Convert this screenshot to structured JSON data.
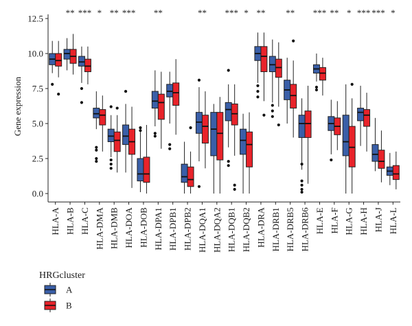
{
  "chart_data": {
    "type": "boxplot",
    "title": "",
    "xlabel": "",
    "ylabel": "Gene expression",
    "ylim": [
      -0.6,
      12.8
    ],
    "yticks": [
      "0.0",
      "2.5",
      "5.0",
      "7.5",
      "10.0",
      "12.5"
    ],
    "ytick_values": [
      0,
      2.5,
      5,
      7.5,
      10,
      12.5
    ],
    "grid": false,
    "legend": {
      "title": "HRGcluster",
      "placement": "bottom-left",
      "entries": [
        {
          "label": "A",
          "color": "#3a5fa8"
        },
        {
          "label": "B",
          "color": "#e8232a"
        }
      ]
    },
    "categories": [
      "HLA-A",
      "HLA-B",
      "HLA-C",
      "HLA-DMA",
      "HLA-DMB",
      "HLA-DOA",
      "HLA-DOB",
      "HLA-DPA1",
      "HLA-DPB1",
      "HLA-DPB2",
      "HLA-DQA1",
      "HLA-DQA2",
      "HLA-DQB1",
      "HLA-DQB2",
      "HLA-DRA",
      "HLA-DRB1",
      "HLA-DRB5",
      "HLA-DRB6",
      "HLA-E",
      "HLA-F",
      "HLA-G",
      "HLA-H",
      "HLA-J",
      "HLA-L"
    ],
    "significance": [
      "",
      "**",
      "***",
      "*",
      "**",
      "***",
      "",
      "**",
      "",
      "",
      "**",
      "",
      "***",
      "*",
      "**",
      "",
      "**",
      "",
      "***",
      "**",
      "*",
      "***",
      "***",
      "*"
    ],
    "series": [
      {
        "name": "A",
        "color": "#3a5fa8",
        "boxes": [
          {
            "whislo": 8.6,
            "q1": 9.2,
            "med": 9.6,
            "q3": 10.0,
            "whishi": 10.9,
            "fliers": [
              7.8
            ]
          },
          {
            "whislo": 8.8,
            "q1": 9.6,
            "med": 10.0,
            "q3": 10.3,
            "whishi": 11.1,
            "fliers": []
          },
          {
            "whislo": 7.9,
            "q1": 9.1,
            "med": 9.4,
            "q3": 9.8,
            "whishi": 10.5,
            "fliers": [
              7.5,
              6.5
            ]
          },
          {
            "whislo": 4.6,
            "q1": 5.4,
            "med": 5.7,
            "q3": 6.1,
            "whishi": 7.3,
            "fliers": [
              3.3,
              3.1,
              2.5,
              2.3
            ]
          },
          {
            "whislo": 2.6,
            "q1": 3.7,
            "med": 4.1,
            "q3": 4.6,
            "whishi": 5.6,
            "fliers": [
              2.4,
              2.1,
              1.8,
              6.2
            ]
          },
          {
            "whislo": 1.5,
            "q1": 3.5,
            "med": 4.1,
            "q3": 4.9,
            "whishi": 6.4,
            "fliers": [
              7.3
            ]
          },
          {
            "whislo": 0.1,
            "q1": 0.9,
            "med": 1.4,
            "q3": 2.5,
            "whishi": 4.4,
            "fliers": [
              4.5,
              4.7
            ]
          },
          {
            "whislo": 4.8,
            "q1": 6.1,
            "med": 6.6,
            "q3": 7.3,
            "whishi": 8.8,
            "fliers": [
              4.3,
              4.1
            ]
          },
          {
            "whislo": 5.0,
            "q1": 6.9,
            "med": 7.3,
            "q3": 7.8,
            "whishi": 8.7,
            "fliers": [
              3.5,
              3.2
            ]
          },
          {
            "whislo": 0.0,
            "q1": 0.8,
            "med": 1.2,
            "q3": 2.1,
            "whishi": 3.7,
            "fliers": []
          },
          {
            "whislo": 2.3,
            "q1": 4.3,
            "med": 5.1,
            "q3": 5.8,
            "whishi": 7.6,
            "fliers": [
              8.1,
              0.5
            ]
          },
          {
            "whislo": 0.0,
            "q1": 2.7,
            "med": 4.6,
            "q3": 5.8,
            "whishi": 6.4,
            "fliers": []
          },
          {
            "whislo": 3.3,
            "q1": 5.2,
            "med": 6.0,
            "q3": 6.5,
            "whishi": 7.8,
            "fliers": [
              8.8,
              2.3,
              2.0
            ]
          },
          {
            "whislo": 0.0,
            "q1": 2.8,
            "med": 3.8,
            "q3": 4.6,
            "whishi": 5.7,
            "fliers": []
          },
          {
            "whislo": 7.9,
            "q1": 9.5,
            "med": 10.0,
            "q3": 10.5,
            "whishi": 11.5,
            "fliers": [
              7.7,
              7.3,
              6.9
            ]
          },
          {
            "whislo": 6.5,
            "q1": 8.7,
            "med": 9.2,
            "q3": 9.8,
            "whishi": 11.0,
            "fliers": [
              6.3,
              5.9,
              5.5
            ]
          },
          {
            "whislo": 5.0,
            "q1": 6.7,
            "med": 7.4,
            "q3": 8.1,
            "whishi": 9.7,
            "fliers": []
          },
          {
            "whislo": 1.7,
            "q1": 4.0,
            "med": 5.0,
            "q3": 5.6,
            "whishi": 6.8,
            "fliers": [
              2.1,
              0.9,
              0.6,
              0.3,
              0.1
            ]
          },
          {
            "whislo": 8.0,
            "q1": 8.6,
            "med": 8.9,
            "q3": 9.2,
            "whishi": 10.0,
            "fliers": [
              7.6,
              7.4
            ]
          },
          {
            "whislo": 2.8,
            "q1": 4.5,
            "med": 5.0,
            "q3": 5.5,
            "whishi": 6.7,
            "fliers": [
              2.4
            ]
          },
          {
            "whislo": 0.0,
            "q1": 2.7,
            "med": 3.7,
            "q3": 5.6,
            "whishi": 7.8,
            "fliers": []
          },
          {
            "whislo": 3.4,
            "q1": 5.2,
            "med": 5.8,
            "q3": 6.1,
            "whishi": 7.7,
            "fliers": []
          },
          {
            "whislo": 1.6,
            "q1": 2.3,
            "med": 2.8,
            "q3": 3.5,
            "whishi": 5.4,
            "fliers": []
          },
          {
            "whislo": 0.6,
            "q1": 1.3,
            "med": 1.6,
            "q3": 1.9,
            "whishi": 2.9,
            "fliers": []
          }
        ]
      },
      {
        "name": "B",
        "color": "#e8232a",
        "boxes": [
          {
            "whislo": 8.3,
            "q1": 9.1,
            "med": 9.5,
            "q3": 10.0,
            "whishi": 10.9,
            "fliers": [
              7.1
            ]
          },
          {
            "whislo": 8.5,
            "q1": 9.3,
            "med": 9.8,
            "q3": 10.3,
            "whishi": 11.4,
            "fliers": []
          },
          {
            "whislo": 7.8,
            "q1": 8.7,
            "med": 9.1,
            "q3": 9.6,
            "whishi": 10.5,
            "fliers": []
          },
          {
            "whislo": 3.0,
            "q1": 4.9,
            "med": 5.6,
            "q3": 6.0,
            "whishi": 7.0,
            "fliers": []
          },
          {
            "whislo": 1.5,
            "q1": 3.0,
            "med": 3.8,
            "q3": 4.4,
            "whishi": 5.6,
            "fliers": [
              6.1
            ]
          },
          {
            "whislo": 0.4,
            "q1": 2.8,
            "med": 3.7,
            "q3": 4.6,
            "whishi": 6.2,
            "fliers": []
          },
          {
            "whislo": 0.0,
            "q1": 0.8,
            "med": 1.4,
            "q3": 2.6,
            "whishi": 4.9,
            "fliers": []
          },
          {
            "whislo": 3.2,
            "q1": 5.3,
            "med": 6.5,
            "q3": 7.1,
            "whishi": 8.7,
            "fliers": []
          },
          {
            "whislo": 4.2,
            "q1": 6.3,
            "med": 7.2,
            "q3": 7.9,
            "whishi": 9.6,
            "fliers": []
          },
          {
            "whislo": 0.0,
            "q1": 0.5,
            "med": 1.0,
            "q3": 1.9,
            "whishi": 3.0,
            "fliers": [
              4.7
            ]
          },
          {
            "whislo": 1.8,
            "q1": 3.6,
            "med": 4.8,
            "q3": 5.6,
            "whishi": 7.3,
            "fliers": []
          },
          {
            "whislo": 0.0,
            "q1": 2.4,
            "med": 4.3,
            "q3": 5.8,
            "whishi": 6.9,
            "fliers": []
          },
          {
            "whislo": 2.7,
            "q1": 4.9,
            "med": 5.7,
            "q3": 6.4,
            "whishi": 7.8,
            "fliers": [
              0.6,
              0.3
            ]
          },
          {
            "whislo": 0.0,
            "q1": 1.9,
            "med": 3.5,
            "q3": 4.4,
            "whishi": 5.8,
            "fliers": []
          },
          {
            "whislo": 6.6,
            "q1": 8.7,
            "med": 9.8,
            "q3": 10.5,
            "whishi": 11.5,
            "fliers": [
              5.6
            ]
          },
          {
            "whislo": 6.2,
            "q1": 8.3,
            "med": 9.0,
            "q3": 9.6,
            "whishi": 10.8,
            "fliers": [
              4.9
            ]
          },
          {
            "whislo": 4.0,
            "q1": 6.1,
            "med": 7.0,
            "q3": 7.8,
            "whishi": 9.5,
            "fliers": [
              10.9
            ]
          },
          {
            "whislo": 0.7,
            "q1": 4.0,
            "med": 5.0,
            "q3": 5.9,
            "whishi": 7.7,
            "fliers": []
          },
          {
            "whislo": 7.0,
            "q1": 8.1,
            "med": 8.6,
            "q3": 9.0,
            "whishi": 9.7,
            "fliers": []
          },
          {
            "whislo": 3.1,
            "q1": 4.2,
            "med": 4.8,
            "q3": 5.4,
            "whishi": 6.6,
            "fliers": []
          },
          {
            "whislo": 0.0,
            "q1": 1.9,
            "med": 3.3,
            "q3": 4.8,
            "whishi": 6.8,
            "fliers": [
              7.8
            ]
          },
          {
            "whislo": 3.0,
            "q1": 4.8,
            "med": 5.6,
            "q3": 6.0,
            "whishi": 7.2,
            "fliers": []
          },
          {
            "whislo": 0.8,
            "q1": 1.8,
            "med": 2.3,
            "q3": 3.1,
            "whishi": 4.5,
            "fliers": []
          },
          {
            "whislo": 0.3,
            "q1": 1.0,
            "med": 1.4,
            "q3": 2.0,
            "whishi": 3.0,
            "fliers": []
          }
        ]
      }
    ]
  }
}
